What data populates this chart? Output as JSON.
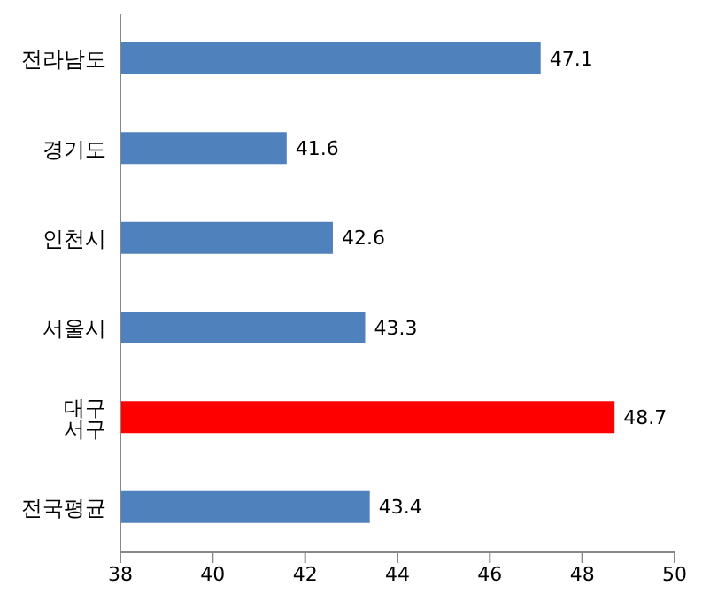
{
  "chart_data": {
    "type": "bar",
    "orientation": "horizontal",
    "categories": [
      "전라남도",
      "경기도",
      "인천시",
      "서울시",
      "대구 서구",
      "전국평균"
    ],
    "values": [
      47.1,
      41.6,
      42.6,
      43.3,
      48.7,
      43.4
    ],
    "colors": [
      "#4f81bd",
      "#4f81bd",
      "#4f81bd",
      "#4f81bd",
      "#ff0000",
      "#4f81bd"
    ],
    "xlim": [
      38,
      50
    ],
    "xticks": [
      38,
      40,
      42,
      44,
      46,
      48,
      50
    ],
    "data_labels": true,
    "grid": false,
    "legend": false
  }
}
